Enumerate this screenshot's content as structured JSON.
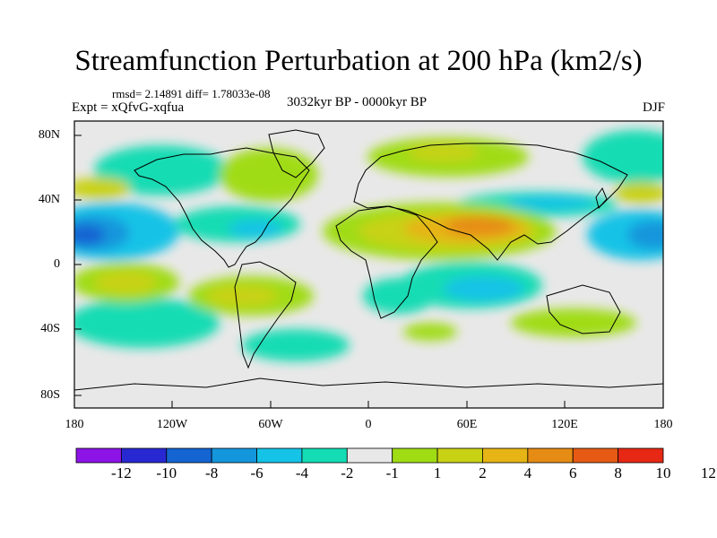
{
  "title": "Streamfunction Perturbation at 200 hPa (km2/s)",
  "rmsd_line": "rmsd= 2.14891 diff= 1.78033e-08",
  "expt_line": "Expt = xQfvG-xqfua",
  "period_line": "3032kyr BP - 0000kyr BP",
  "season": "DJF",
  "lat_labels": [
    "80N",
    "40N",
    "0",
    "40S",
    "80S"
  ],
  "lon_labels": [
    "180",
    "120W",
    "60W",
    "0",
    "60E",
    "120E",
    "180"
  ],
  "colorbar": {
    "colors": [
      "#8c14e6",
      "#2828d2",
      "#1464d2",
      "#1496dc",
      "#14c3e6",
      "#14dcb4",
      "#e8e8e8",
      "#a0dc14",
      "#c8d214",
      "#e6b414",
      "#e68c14",
      "#e65a14",
      "#e62814"
    ],
    "labels": [
      "-12",
      "-10",
      "-8",
      "-6",
      "-4",
      "-2",
      "-1",
      "1",
      "2",
      "4",
      "6",
      "8",
      "10",
      "12"
    ]
  },
  "colors": {
    "ocean": "#e8e8e8",
    "coast": "#000000"
  }
}
